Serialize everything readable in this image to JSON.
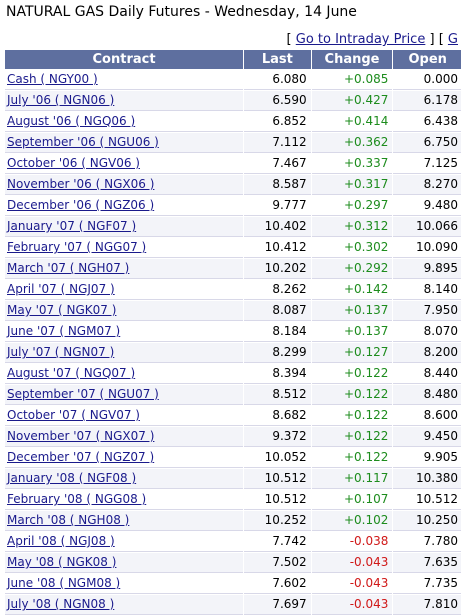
{
  "page": {
    "title": "NATURAL GAS Daily Futures - Wednesday, 14 June",
    "link_open": "[",
    "link_label": "Go to Intraday Price",
    "link_close": "]",
    "link2_open": "[",
    "link2_label": "G"
  },
  "table": {
    "headers": [
      "Contract",
      "Last",
      "Change",
      "Open"
    ],
    "rows": [
      {
        "contract": "Cash ( NGY00 )",
        "last": "6.080",
        "change": "+0.085",
        "open": "0.000"
      },
      {
        "contract": "July '06 ( NGN06 )",
        "last": "6.590",
        "change": "+0.427",
        "open": "6.178"
      },
      {
        "contract": "August '06 ( NGQ06 )",
        "last": "6.852",
        "change": "+0.414",
        "open": "6.438"
      },
      {
        "contract": "September '06 ( NGU06 )",
        "last": "7.112",
        "change": "+0.362",
        "open": "6.750"
      },
      {
        "contract": "October '06 ( NGV06 )",
        "last": "7.467",
        "change": "+0.337",
        "open": "7.125"
      },
      {
        "contract": "November '06 ( NGX06 )",
        "last": "8.587",
        "change": "+0.317",
        "open": "8.270"
      },
      {
        "contract": "December '06 ( NGZ06 )",
        "last": "9.777",
        "change": "+0.297",
        "open": "9.480"
      },
      {
        "contract": "January '07 ( NGF07 )",
        "last": "10.402",
        "change": "+0.312",
        "open": "10.066"
      },
      {
        "contract": "February '07 ( NGG07 )",
        "last": "10.412",
        "change": "+0.302",
        "open": "10.090"
      },
      {
        "contract": "March '07 ( NGH07 )",
        "last": "10.202",
        "change": "+0.292",
        "open": "9.895"
      },
      {
        "contract": "April '07 ( NGJ07 )",
        "last": "8.262",
        "change": "+0.142",
        "open": "8.140"
      },
      {
        "contract": "May '07 ( NGK07 )",
        "last": "8.087",
        "change": "+0.137",
        "open": "7.950"
      },
      {
        "contract": "June '07 ( NGM07 )",
        "last": "8.184",
        "change": "+0.137",
        "open": "8.070"
      },
      {
        "contract": "July '07 ( NGN07 )",
        "last": "8.299",
        "change": "+0.127",
        "open": "8.200"
      },
      {
        "contract": "August '07 ( NGQ07 )",
        "last": "8.394",
        "change": "+0.122",
        "open": "8.440"
      },
      {
        "contract": "September '07 ( NGU07 )",
        "last": "8.512",
        "change": "+0.122",
        "open": "8.480"
      },
      {
        "contract": "October '07 ( NGV07 )",
        "last": "8.682",
        "change": "+0.122",
        "open": "8.600"
      },
      {
        "contract": "November '07 ( NGX07 )",
        "last": "9.372",
        "change": "+0.122",
        "open": "9.450"
      },
      {
        "contract": "December '07 ( NGZ07 )",
        "last": "10.052",
        "change": "+0.122",
        "open": "9.905"
      },
      {
        "contract": "January '08 ( NGF08 )",
        "last": "10.512",
        "change": "+0.117",
        "open": "10.380"
      },
      {
        "contract": "February '08 ( NGG08 )",
        "last": "10.512",
        "change": "+0.107",
        "open": "10.512"
      },
      {
        "contract": "March '08 ( NGH08 )",
        "last": "10.252",
        "change": "+0.102",
        "open": "10.250"
      },
      {
        "contract": "April '08 ( NGJ08 )",
        "last": "7.742",
        "change": "-0.038",
        "open": "7.780"
      },
      {
        "contract": "May '08 ( NGK08 )",
        "last": "7.502",
        "change": "-0.043",
        "open": "7.635"
      },
      {
        "contract": "June '08 ( NGM08 )",
        "last": "7.602",
        "change": "-0.043",
        "open": "7.735"
      },
      {
        "contract": "July '08 ( NGN08 )",
        "last": "7.697",
        "change": "-0.043",
        "open": "7.810"
      }
    ]
  },
  "colors": {
    "header_bg": "#5e6f9f",
    "positive": "#1d8c1d",
    "negative": "#d01818",
    "link": "#1a1a8c"
  }
}
